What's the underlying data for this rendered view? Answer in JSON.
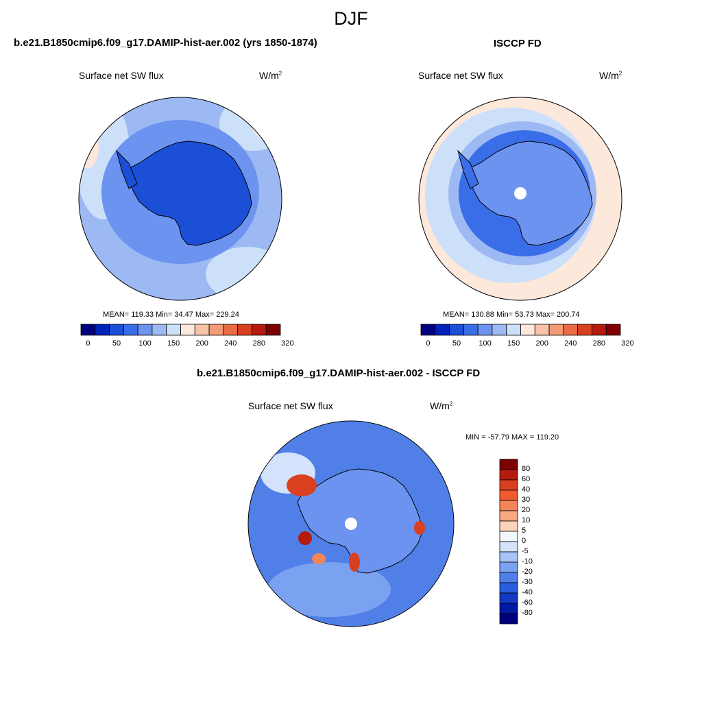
{
  "figure": {
    "season_title": "DJF"
  },
  "panels": [
    {
      "id": "model",
      "title": "b.e21.B1850cmip6.f09_g17.DAMIP-hist-aer.002 (yrs 1850-1874)",
      "variable": "Surface net SW flux",
      "units_base": "W/m",
      "units_exp": "2",
      "stats": "MEAN= 119.33  Min=  34.47  Max= 229.24",
      "colorbar_labels": [
        "0",
        "50",
        "100",
        "150",
        "200",
        "240",
        "280",
        "320"
      ],
      "pole_hole": false
    },
    {
      "id": "obs",
      "title": "ISCCP FD",
      "variable": "Surface net SW flux",
      "units_base": "W/m",
      "units_exp": "2",
      "stats": "MEAN= 130.88  Min=  53.73  Max= 200.74",
      "colorbar_labels": [
        "0",
        "50",
        "100",
        "150",
        "200",
        "240",
        "280",
        "320"
      ],
      "pole_hole": true
    }
  ],
  "diff_panel": {
    "title": "b.e21.B1850cmip6.f09_g17.DAMIP-hist-aer.002 - ISCCP FD",
    "variable": "Surface net SW flux",
    "units_base": "W/m",
    "units_exp": "2",
    "minmax": "MIN = -57.79 MAX = 119.20",
    "colorbar_labels": [
      "80",
      "60",
      "40",
      "30",
      "20",
      "10",
      "5",
      "0",
      "-5",
      "-10",
      "-20",
      "-30",
      "-40",
      "-60",
      "-80"
    ]
  },
  "colors": {
    "abs_scale": [
      "#00007f",
      "#0022b8",
      "#1a4fd6",
      "#3a6ee8",
      "#6b93ef",
      "#9db9f4",
      "#cde0fa",
      "#fde8dc",
      "#f9c3a7",
      "#f39a76",
      "#ea6c47",
      "#d9401f",
      "#b51b0d",
      "#7f0000"
    ],
    "diff_scale": [
      "#7f0000",
      "#b51b0d",
      "#d9401f",
      "#ef5a2e",
      "#f4855a",
      "#f8a882",
      "#fcd2b8",
      "#f3f6fd",
      "#d4e3fb",
      "#a8c4f6",
      "#7ba2f0",
      "#5080e7",
      "#2a5ddb",
      "#1239c2",
      "#0018a3",
      "#00007f"
    ],
    "land_model": "#1a4fd6",
    "ocean_model": "#9db9f4",
    "land_obs": "#6b93ef",
    "ocean_obs": "#cde0fa",
    "land_diff": "#6b93ef",
    "ocean_diff": "#5080e7"
  }
}
